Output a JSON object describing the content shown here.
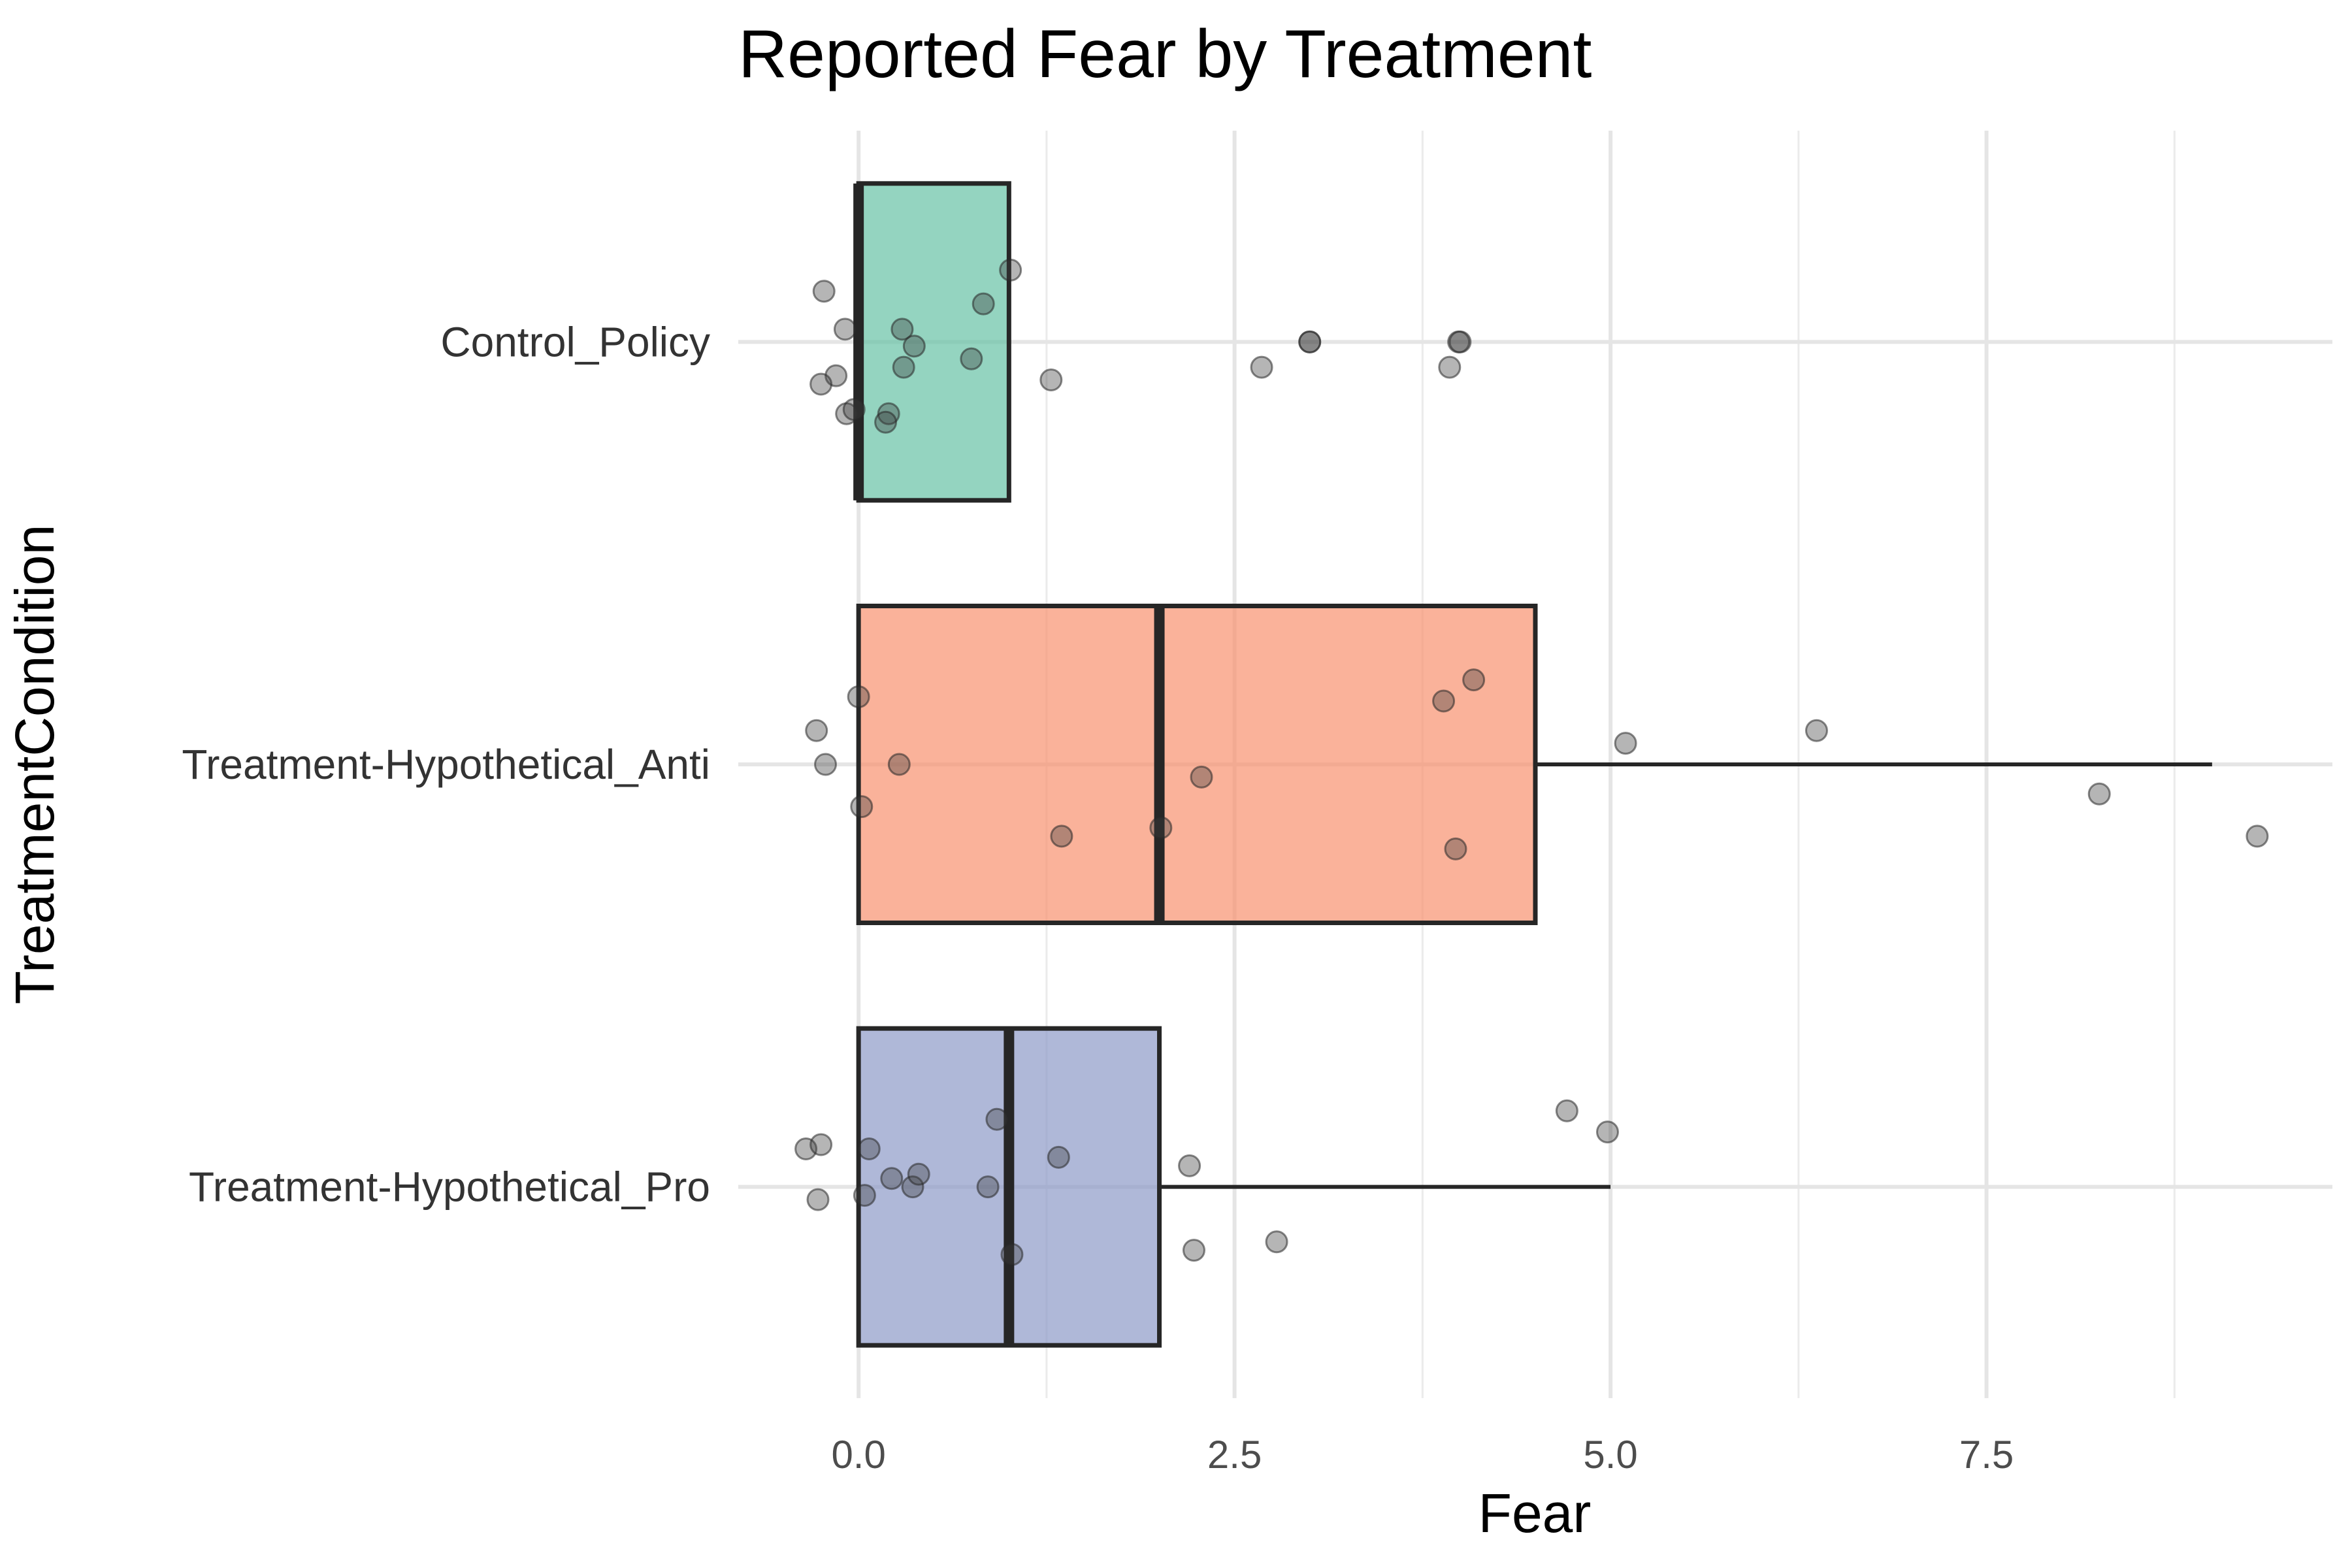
{
  "chart_data": {
    "type": "boxplot",
    "orientation": "horizontal",
    "title": "Reported Fear by Treatment",
    "xlabel": "Fear",
    "ylabel": "TreatmentCondition",
    "xlim": [
      -0.8,
      9.8
    ],
    "x_ticks": [
      {
        "value": 0,
        "label": "0.0"
      },
      {
        "value": 2.5,
        "label": "2.5"
      },
      {
        "value": 5,
        "label": "5.0"
      },
      {
        "value": 7.5,
        "label": "7.5"
      }
    ],
    "grid": true,
    "legend": "none",
    "categories": [
      "Treatment-Hypothetical_Pro",
      "Treatment-Hypothetical_Anti",
      "Control_Policy"
    ],
    "boxes": [
      {
        "category": "Treatment-Hypothetical_Pro",
        "color": "#8d9ac8",
        "min": 0,
        "q1": 0,
        "median": 1,
        "q3": 2,
        "max": 5,
        "points": [
          {
            "x": -0.35,
            "dy": 0.09
          },
          {
            "x": -0.25,
            "dy": 0.1
          },
          {
            "x": -0.27,
            "dy": -0.03
          },
          {
            "x": 0.07,
            "dy": 0.09
          },
          {
            "x": 0.04,
            "dy": -0.02
          },
          {
            "x": 0.22,
            "dy": 0.02
          },
          {
            "x": 0.36,
            "dy": 0.0
          },
          {
            "x": 0.4,
            "dy": 0.03
          },
          {
            "x": 0.86,
            "dy": 0.0
          },
          {
            "x": 0.92,
            "dy": 0.16
          },
          {
            "x": 1.33,
            "dy": 0.07
          },
          {
            "x": 1.02,
            "dy": -0.16
          },
          {
            "x": 2.2,
            "dy": 0.05
          },
          {
            "x": 2.23,
            "dy": -0.15
          },
          {
            "x": 2.78,
            "dy": -0.13
          },
          {
            "x": 4.71,
            "dy": 0.18
          },
          {
            "x": 4.98,
            "dy": 0.13
          }
        ]
      },
      {
        "category": "Treatment-Hypothetical_Anti",
        "color": "#f8926f",
        "min": 0,
        "q1": 0,
        "median": 2,
        "q3": 4.5,
        "max": 9,
        "points": [
          {
            "x": 0.0,
            "dy": 0.16
          },
          {
            "x": -0.28,
            "dy": 0.08
          },
          {
            "x": -0.22,
            "dy": 0.0
          },
          {
            "x": 0.27,
            "dy": 0.0
          },
          {
            "x": 0.02,
            "dy": -0.1
          },
          {
            "x": 1.35,
            "dy": -0.17
          },
          {
            "x": 2.01,
            "dy": -0.15
          },
          {
            "x": 2.28,
            "dy": -0.03
          },
          {
            "x": 3.89,
            "dy": 0.15
          },
          {
            "x": 4.09,
            "dy": 0.2
          },
          {
            "x": 3.97,
            "dy": -0.2
          },
          {
            "x": 5.1,
            "dy": 0.05
          },
          {
            "x": 6.37,
            "dy": 0.08
          },
          {
            "x": 8.25,
            "dy": -0.07
          },
          {
            "x": 9.3,
            "dy": -0.17
          }
        ]
      },
      {
        "category": "Control_Policy",
        "color": "#66c2a5",
        "min": 0,
        "q1": 0,
        "median": 0,
        "q3": 1,
        "max": 1,
        "points": [
          {
            "x": -0.23,
            "dy": 0.12
          },
          {
            "x": -0.09,
            "dy": 0.03
          },
          {
            "x": -0.15,
            "dy": -0.08
          },
          {
            "x": -0.25,
            "dy": -0.1
          },
          {
            "x": -0.08,
            "dy": -0.17
          },
          {
            "x": -0.03,
            "dy": -0.16
          },
          {
            "x": 0.29,
            "dy": 0.03
          },
          {
            "x": 0.37,
            "dy": -0.01
          },
          {
            "x": 0.3,
            "dy": -0.06
          },
          {
            "x": 0.2,
            "dy": -0.17
          },
          {
            "x": 0.18,
            "dy": -0.19
          },
          {
            "x": 0.75,
            "dy": -0.04
          },
          {
            "x": 0.83,
            "dy": 0.09
          },
          {
            "x": 1.01,
            "dy": 0.17
          },
          {
            "x": 1.28,
            "dy": -0.09
          },
          {
            "x": 2.68,
            "dy": -0.06
          },
          {
            "x": 3.0,
            "dy": 0.0
          },
          {
            "x": 3.0,
            "dy": 0.0
          },
          {
            "x": 3.93,
            "dy": -0.06
          },
          {
            "x": 3.99,
            "dy": 0.0
          },
          {
            "x": 4.0,
            "dy": 0.0
          }
        ]
      }
    ]
  }
}
